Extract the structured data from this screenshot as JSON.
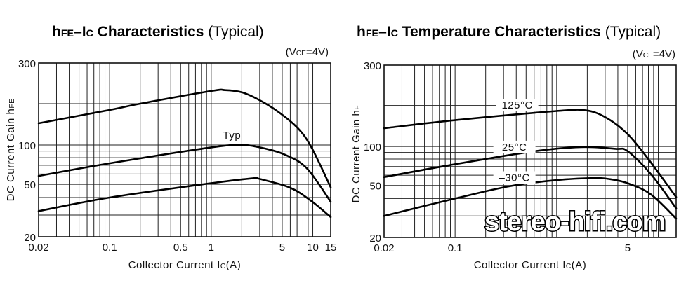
{
  "chart_data": [
    {
      "type": "line",
      "title_segments": [
        {
          "t": "h",
          "bold": true
        },
        {
          "t": "FE",
          "sub": true,
          "bold": true
        },
        {
          "t": "–I",
          "bold": true
        },
        {
          "t": "C",
          "sub": true,
          "bold": true
        },
        {
          "t": " Characteristics",
          "bold": true
        },
        {
          "t": " (Typical)"
        }
      ],
      "condition_segments": [
        {
          "t": "(V"
        },
        {
          "t": "CE",
          "sub": true
        },
        {
          "t": "=4V)"
        }
      ],
      "ylabel_segments": [
        {
          "t": "DC Current Gain h"
        },
        {
          "t": "FE",
          "sub": true
        }
      ],
      "xlabel_segments": [
        {
          "t": "Collector Current I"
        },
        {
          "t": "C",
          "sub": true
        },
        {
          "t": "(A)"
        }
      ],
      "xscale": "log",
      "yscale": "log",
      "xlim": [
        0.02,
        15
      ],
      "ylim": [
        20,
        300
      ],
      "x_ticks": [
        "0.02",
        "0.1",
        "0.5",
        "1",
        "5",
        "10",
        "15"
      ],
      "y_ticks": [
        "300",
        "100",
        "50",
        "20"
      ],
      "x_grid": [
        0.02,
        0.03,
        0.04,
        0.05,
        0.06,
        0.07,
        0.08,
        0.09,
        0.1,
        0.2,
        0.3,
        0.4,
        0.5,
        0.6,
        0.7,
        0.8,
        0.9,
        1,
        2,
        3,
        4,
        5,
        6,
        7,
        8,
        9,
        10,
        15
      ],
      "y_grid": [
        300,
        200,
        100,
        90,
        80,
        70,
        60,
        50,
        40,
        30,
        20
      ],
      "grid": true,
      "series": [
        {
          "name": "upper",
          "x": [
            0.02,
            0.1,
            0.2,
            1.0,
            1.37,
            2.0,
            3.0,
            4.6,
            7.1,
            9.7,
            15
          ],
          "y": [
            144,
            180,
            200,
            227,
            229,
            224,
            207,
            174,
            133,
            96,
            47.6
          ]
        },
        {
          "name": "Typ",
          "label": "Typ",
          "x": [
            0.02,
            0.1,
            1.0,
            2.0,
            3.0,
            5.2,
            8.7,
            15
          ],
          "y": [
            58,
            72.5,
            96,
            100,
            96,
            85,
            66.5,
            37.3
          ]
        },
        {
          "name": "lower",
          "x": [
            0.02,
            0.1,
            1.0,
            2.6,
            3.0,
            6.0,
            9.7,
            15
          ],
          "y": [
            32,
            40,
            51,
            55.7,
            55,
            47.2,
            37.7,
            28.9
          ]
        }
      ]
    },
    {
      "type": "line",
      "title_segments": [
        {
          "t": "h",
          "bold": true
        },
        {
          "t": "FE",
          "sub": true,
          "bold": true
        },
        {
          "t": "–I",
          "bold": true
        },
        {
          "t": "C",
          "sub": true,
          "bold": true
        },
        {
          "t": " Temperature  Characteristics",
          "bold": true
        },
        {
          "t": " (Typical)"
        }
      ],
      "condition_segments": [
        {
          "t": "(V"
        },
        {
          "t": "CE",
          "sub": true
        },
        {
          "t": "=4V)"
        }
      ],
      "ylabel_segments": [
        {
          "t": "DC Current Gain h"
        },
        {
          "t": "FE",
          "sub": true
        }
      ],
      "xlabel_segments": [
        {
          "t": "Collector Current I"
        },
        {
          "t": "C",
          "sub": true
        },
        {
          "t": "(A)"
        }
      ],
      "xscale": "log",
      "yscale": "log",
      "xlim": [
        0.02,
        15
      ],
      "ylim": [
        20,
        300
      ],
      "x_ticks": [
        "0.02",
        "0.1",
        "5"
      ],
      "y_ticks": [
        "300",
        "100",
        "50",
        "20"
      ],
      "x_grid": [
        0.02,
        0.03,
        0.04,
        0.05,
        0.06,
        0.07,
        0.08,
        0.09,
        0.1,
        0.2,
        0.3,
        0.4,
        0.5,
        0.6,
        0.7,
        0.8,
        0.9,
        1,
        2,
        3,
        4,
        5,
        6,
        7,
        8,
        9,
        10,
        15
      ],
      "y_grid": [
        300,
        200,
        100,
        90,
        80,
        70,
        60,
        50,
        40,
        30,
        20
      ],
      "grid": true,
      "series": [
        {
          "name": "125°C",
          "label": "125°C",
          "x": [
            0.02,
            0.1,
            1.0,
            1.94,
            3.1,
            5.0,
            8.1,
            15
          ],
          "y": [
            136,
            156,
            182,
            184,
            162,
            123,
            78.7,
            41
          ]
        },
        {
          "name": "25°C",
          "label": "25°C",
          "x": [
            0.02,
            0.1,
            0.61,
            1.73,
            3.8,
            5.0,
            8.5,
            15
          ],
          "y": [
            58,
            73,
            92,
            99,
            96,
            92,
            61,
            34
          ]
        },
        {
          "name": "–30°C",
          "label": "–30°C",
          "x": [
            0.02,
            0.1,
            0.35,
            1.0,
            2.27,
            3.3,
            5.0,
            8.5,
            15
          ],
          "y": [
            30,
            40,
            49.5,
            55,
            57,
            56,
            52,
            42.8,
            28.5
          ]
        }
      ]
    }
  ],
  "watermark": "stereo-hifi.com"
}
